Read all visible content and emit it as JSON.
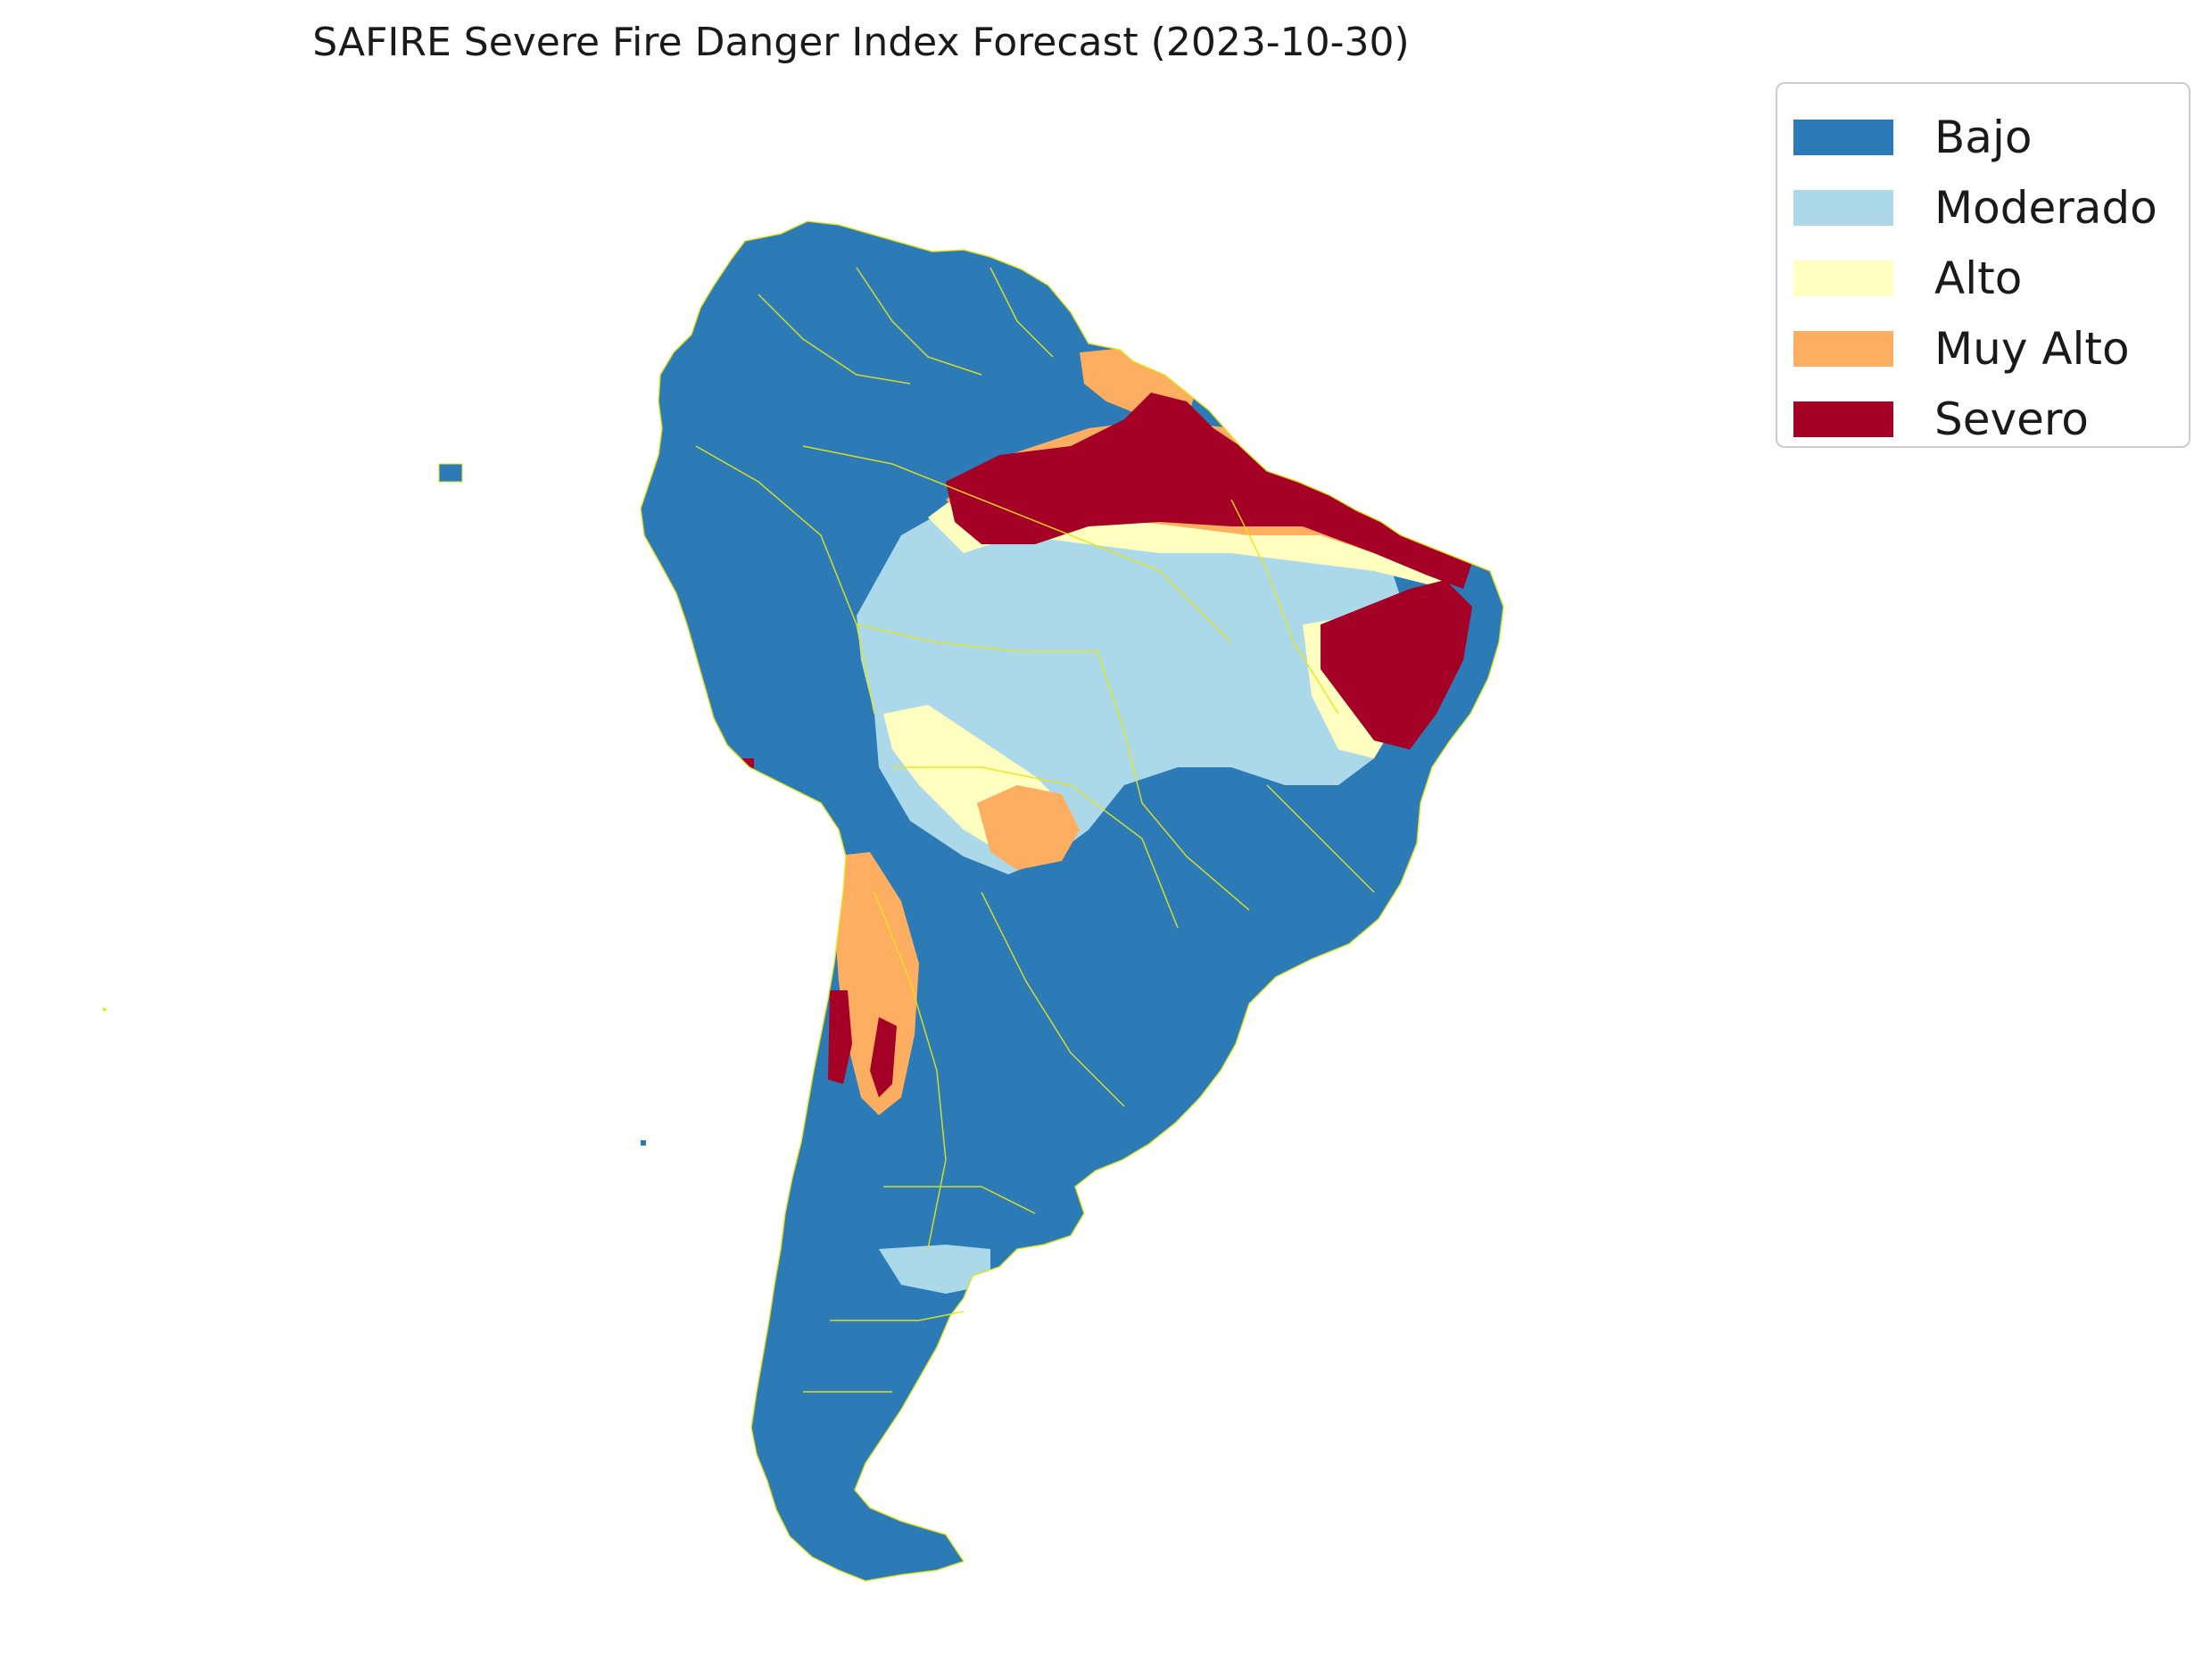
{
  "title": "SAFIRE Severe Fire Danger Index Forecast (2023-10-30)",
  "legend": {
    "items": [
      {
        "label": "Bajo",
        "color": "#2c7bb6"
      },
      {
        "label": "Moderado",
        "color": "#abd9e9"
      },
      {
        "label": "Alto",
        "color": "#ffffbf"
      },
      {
        "label": "Muy Alto",
        "color": "#fdae61"
      },
      {
        "label": "Severo",
        "color": "#a50026"
      }
    ]
  },
  "map": {
    "region": "South America",
    "border_color": "#e6e619",
    "background": "#ffffff"
  }
}
